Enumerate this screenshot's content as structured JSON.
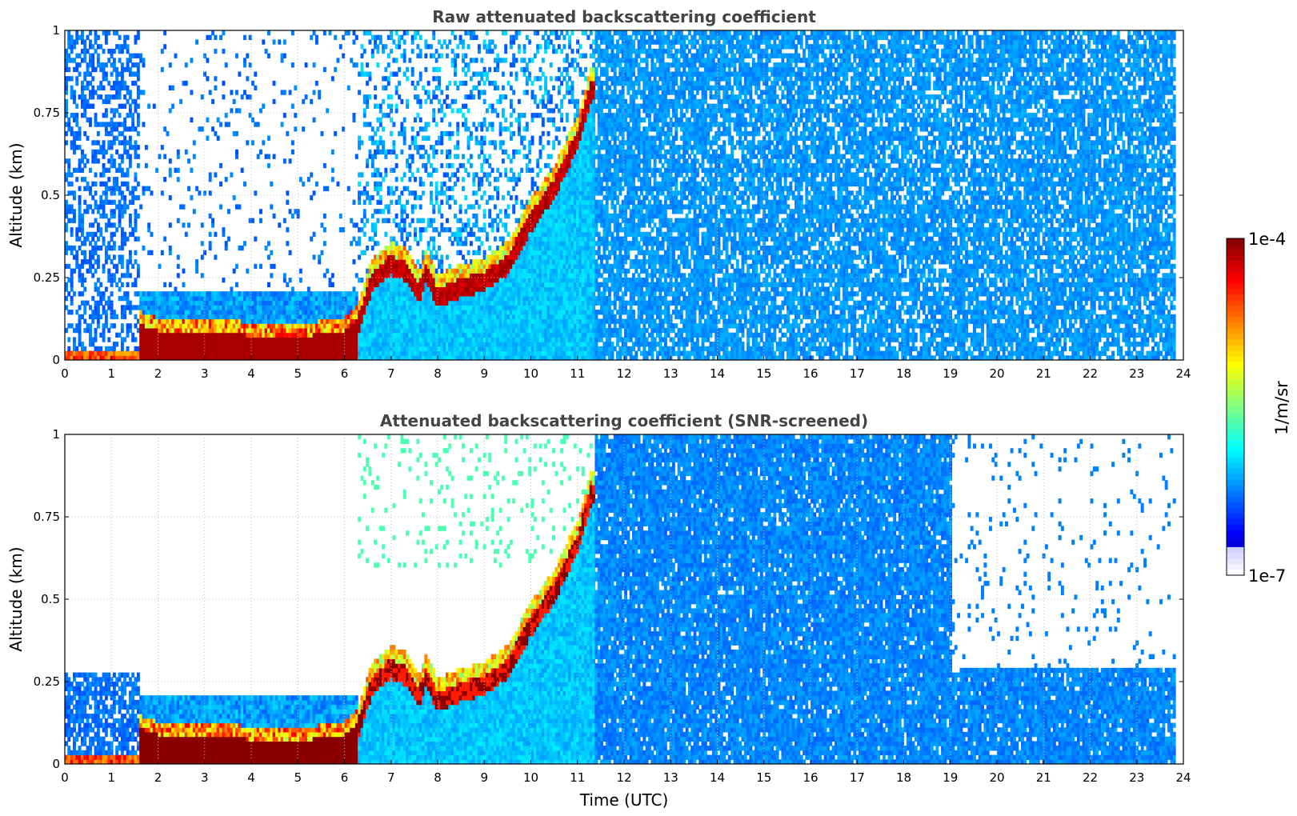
{
  "chart_data": [
    {
      "type": "heatmap",
      "title": "Raw attenuated backscattering coefficient",
      "xlabel": "",
      "ylabel": "Altitude (km)",
      "xlim": [
        0,
        24
      ],
      "ylim": [
        0,
        1
      ],
      "x_ticks": [
        "0",
        "1",
        "2",
        "3",
        "4",
        "5",
        "6",
        "7",
        "8",
        "9",
        "10",
        "11",
        "12",
        "13",
        "14",
        "15",
        "16",
        "17",
        "18",
        "19",
        "20",
        "21",
        "22",
        "23",
        "24"
      ],
      "y_ticks": [
        "0",
        "0.25",
        "0.5",
        "0.75",
        "1"
      ],
      "grid": true,
      "screened": false,
      "colorscale": "jet, log10(1e-7 .. 1e-4)",
      "layer_top_km": [
        [
          1.6,
          0.12
        ],
        [
          2,
          0.1
        ],
        [
          3,
          0.1
        ],
        [
          4,
          0.085
        ],
        [
          5,
          0.08
        ],
        [
          6,
          0.1
        ],
        [
          6.3,
          0.14
        ],
        [
          6.6,
          0.27
        ],
        [
          7,
          0.32
        ],
        [
          7.3,
          0.3
        ],
        [
          7.6,
          0.23
        ],
        [
          7.75,
          0.3
        ],
        [
          8,
          0.22
        ],
        [
          8.5,
          0.25
        ],
        [
          9,
          0.27
        ],
        [
          9.5,
          0.32
        ],
        [
          10,
          0.45
        ],
        [
          10.5,
          0.55
        ],
        [
          11,
          0.7
        ],
        [
          11.3,
          0.85
        ]
      ]
    },
    {
      "type": "heatmap",
      "title": "Attenuated backscattering coefficient (SNR-screened)",
      "xlabel": "Time (UTC)",
      "ylabel": "Altitude (km)",
      "xlim": [
        0,
        24
      ],
      "ylim": [
        0,
        1
      ],
      "x_ticks": [
        "0",
        "1",
        "2",
        "3",
        "4",
        "5",
        "6",
        "7",
        "8",
        "9",
        "10",
        "11",
        "12",
        "13",
        "14",
        "15",
        "16",
        "17",
        "18",
        "19",
        "20",
        "21",
        "22",
        "23",
        "24"
      ],
      "y_ticks": [
        "0",
        "0.25",
        "0.5",
        "0.75",
        "1"
      ],
      "grid": true,
      "screened": true,
      "colorscale": "jet, log10(1e-7 .. 1e-4)",
      "layer_top_km": [
        [
          1.6,
          0.12
        ],
        [
          2,
          0.1
        ],
        [
          3,
          0.1
        ],
        [
          4,
          0.085
        ],
        [
          5,
          0.08
        ],
        [
          6,
          0.1
        ],
        [
          6.3,
          0.14
        ],
        [
          6.6,
          0.27
        ],
        [
          7,
          0.32
        ],
        [
          7.3,
          0.3
        ],
        [
          7.6,
          0.23
        ],
        [
          7.75,
          0.3
        ],
        [
          8,
          0.22
        ],
        [
          8.5,
          0.25
        ],
        [
          9,
          0.27
        ],
        [
          9.5,
          0.32
        ],
        [
          10,
          0.45
        ],
        [
          10.5,
          0.55
        ],
        [
          11,
          0.7
        ],
        [
          11.3,
          0.85
        ]
      ]
    }
  ],
  "colorbar": {
    "max_label": "1e-4",
    "min_label": "1e-7",
    "unit_label": "1/m/sr"
  }
}
